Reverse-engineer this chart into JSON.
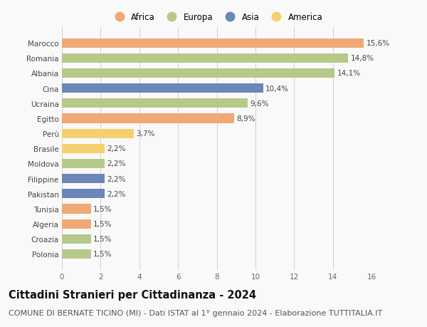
{
  "countries": [
    "Marocco",
    "Romania",
    "Albania",
    "Cina",
    "Ucraina",
    "Egitto",
    "Perù",
    "Brasile",
    "Moldova",
    "Filippine",
    "Pakistan",
    "Tunisia",
    "Algeria",
    "Croazia",
    "Polonia"
  ],
  "values": [
    15.6,
    14.8,
    14.1,
    10.4,
    9.6,
    8.9,
    3.7,
    2.2,
    2.2,
    2.2,
    2.2,
    1.5,
    1.5,
    1.5,
    1.5
  ],
  "labels": [
    "15,6%",
    "14,8%",
    "14,1%",
    "10,4%",
    "9,6%",
    "8,9%",
    "3,7%",
    "2,2%",
    "2,2%",
    "2,2%",
    "2,2%",
    "1,5%",
    "1,5%",
    "1,5%",
    "1,5%"
  ],
  "colors": [
    "#F0A875",
    "#B5C98A",
    "#B5C98A",
    "#6B86B8",
    "#B5C98A",
    "#F0A875",
    "#F5D06E",
    "#F5D06E",
    "#B5C98A",
    "#6B86B8",
    "#6B86B8",
    "#F0A875",
    "#F0A875",
    "#B5C98A",
    "#B5C98A"
  ],
  "continent_colors": {
    "Africa": "#F0A875",
    "Europa": "#B5C98A",
    "Asia": "#6B86B8",
    "America": "#F5D06E"
  },
  "legend_order": [
    "Africa",
    "Europa",
    "Asia",
    "America"
  ],
  "title": "Cittadini Stranieri per Cittadinanza - 2024",
  "subtitle": "COMUNE DI BERNATE TICINO (MI) - Dati ISTAT al 1° gennaio 2024 - Elaborazione TUTTITALIA.IT",
  "xlim": [
    0,
    16
  ],
  "xticks": [
    0,
    2,
    4,
    6,
    8,
    10,
    12,
    14,
    16
  ],
  "background_color": "#f9f9f9",
  "grid_color": "#d0d0d0",
  "bar_height": 0.62,
  "title_fontsize": 10.5,
  "subtitle_fontsize": 8,
  "label_fontsize": 7.5,
  "tick_fontsize": 7.5,
  "legend_fontsize": 8.5
}
